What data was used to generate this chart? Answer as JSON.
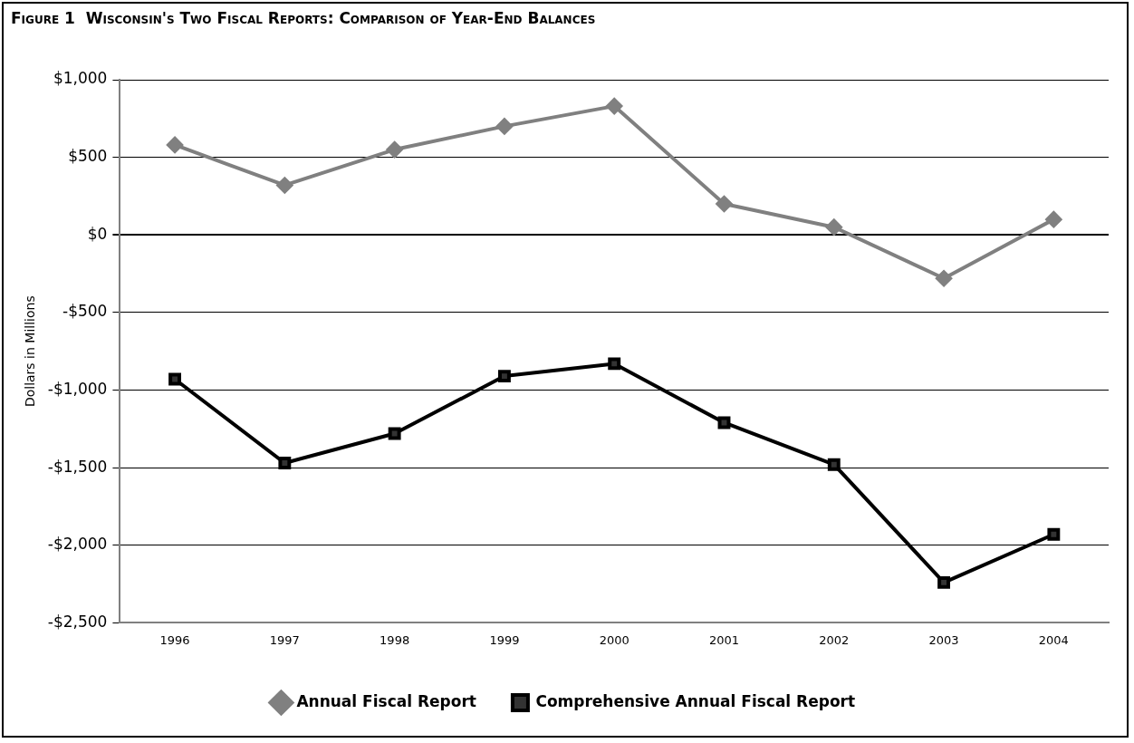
{
  "chart_data": {
    "type": "line",
    "title": "Figure 1  Wisconsin's Two Fiscal Reports: Comparison of Year-End Balances",
    "ylabel": "Dollars in Millions",
    "categories": [
      "1996",
      "1997",
      "1998",
      "1999",
      "2000",
      "2001",
      "2002",
      "2003",
      "2004"
    ],
    "series": [
      {
        "name": "Annual Fiscal Report",
        "color": "#808080",
        "marker": "diamond",
        "values": [
          580,
          320,
          550,
          700,
          830,
          200,
          50,
          -280,
          100
        ]
      },
      {
        "name": "Comprehensive Annual Fiscal Report",
        "color": "#000000",
        "marker": "square",
        "values": [
          -930,
          -1470,
          -1280,
          -910,
          -830,
          -1210,
          -1480,
          -2240,
          -1930
        ]
      }
    ],
    "ylim": [
      -2500,
      1000
    ],
    "yticks": [
      {
        "value": -2500,
        "label": "-$2,500"
      },
      {
        "value": -2000,
        "label": "-$2,000"
      },
      {
        "value": -1500,
        "label": "-$1,500"
      },
      {
        "value": -1000,
        "label": "-$1,000"
      },
      {
        "value": -500,
        "label": "-$500"
      },
      {
        "value": 0,
        "label": "$0"
      },
      {
        "value": 500,
        "label": "$500"
      },
      {
        "value": 1000,
        "label": "$1,000"
      }
    ],
    "grid": "y",
    "legend": "bottom",
    "line_style": "solid"
  }
}
